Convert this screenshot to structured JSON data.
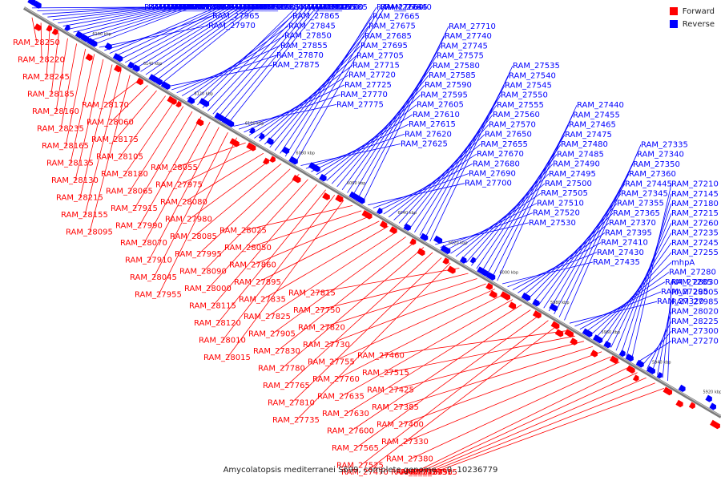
{
  "legend": {
    "forward": {
      "label": "Forward",
      "color": "#ff0000"
    },
    "reverse": {
      "label": "Reverse",
      "color": "#0000ff"
    }
  },
  "caption": "Amycolatopsis mediterranei S699, complete genome. - 0..10236779",
  "ticks": [
    "6160 kbp",
    "6140 kbp",
    "6120 kbp",
    "6100 kbp",
    "6080 kbp",
    "6060 kbp",
    "6040 kbp",
    "6020 kbp",
    "6000 kbp",
    "5980 kbp",
    "5960 kbp",
    "5940 kbp",
    "5920 kbp"
  ],
  "reverse_labels": [
    "RAM_28210",
    "RAM_28145",
    "RAM_28190",
    "RAM_28140",
    "RAM_28230",
    "RAM_28125",
    "RAM_28110",
    "RAM_28150",
    "RAM_28100",
    "RAM_28075",
    "RAM_28040",
    "RAM_28035",
    "RAM_28285",
    "RAM_27970",
    "RAM_27965",
    "RAM_27960",
    "RAM_27950",
    "RAM_27945",
    "RAM_27940",
    "RAM_27935",
    "RAM_27930",
    "RAM_27925",
    "RAM_27920",
    "RAM_27890",
    "RAM_27885",
    "RAM_27880",
    "RAM_27875",
    "RAM_27870",
    "RAM_27855",
    "RAM_27850",
    "RAM_27845",
    "RAM_27865",
    "RAM_27840",
    "RAM_27900",
    "RAM_27805",
    "RAM_27795",
    "RAM_27800",
    "RAM_27790",
    "RAM_27785",
    "RAM_27775",
    "RAM_27770",
    "RAM_27725",
    "RAM_27720",
    "RAM_27715",
    "RAM_27705",
    "RAM_27695",
    "RAM_27685",
    "RAM_27675",
    "RAM_27665",
    "RAM_27660",
    "RAM_27645",
    "RAM_27640",
    "RAM_27625",
    "RAM_27620",
    "RAM_27615",
    "RAM_27610",
    "RAM_27605",
    "RAM_27595",
    "RAM_27590",
    "RAM_27585",
    "RAM_27580",
    "RAM_27575",
    "RAM_27745",
    "RAM_27740",
    "RAM_27710",
    "RAM_27700",
    "RAM_27690",
    "RAM_27680",
    "RAM_27670",
    "RAM_27655",
    "RAM_27650",
    "RAM_27570",
    "RAM_27560",
    "RAM_27555",
    "RAM_27550",
    "RAM_27545",
    "RAM_27540",
    "RAM_27535",
    "RAM_27530",
    "RAM_27520",
    "RAM_27510",
    "RAM_27505",
    "RAM_27500",
    "RAM_27495",
    "RAM_27490",
    "RAM_27485",
    "RAM_27480",
    "RAM_27475",
    "RAM_27465",
    "RAM_27455",
    "RAM_27440",
    "RAM_27435",
    "RAM_27430",
    "RAM_27410",
    "RAM_27395",
    "RAM_27370",
    "RAM_27365",
    "RAM_27355",
    "RAM_27345",
    "RAM_27445",
    "RAM_27360",
    "RAM_27350",
    "RAM_27340",
    "RAM_27335",
    "RAM_27320",
    "RAM_27295",
    "RAM_27285",
    "RAM_27280",
    "mhpA",
    "RAM_27255",
    "RAM_27245",
    "RAM_27235",
    "RAM_27260",
    "RAM_27215",
    "RAM_27180",
    "RAM_27145",
    "RAM_27210",
    "RAM_27270",
    "RAM_27300",
    "RAM_28225",
    "RAM_28020",
    "RAM_27985",
    "RAM_28005",
    "RAM_28030"
  ],
  "forward_labels": [
    "RAM_28250",
    "RAM_28220",
    "RAM_28245",
    "RAM_28185",
    "RAM_28160",
    "RAM_28235",
    "RAM_28165",
    "RAM_28135",
    "RAM_28130",
    "RAM_28215",
    "RAM_28155",
    "RAM_28095",
    "RAM_28170",
    "RAM_28060",
    "RAM_28175",
    "RAM_28105",
    "RAM_28180",
    "RAM_28065",
    "RAM_27915",
    "RAM_27990",
    "RAM_28070",
    "RAM_27910",
    "RAM_28045",
    "RAM_27955",
    "RAM_28055",
    "RAM_27975",
    "RAM_28080",
    "RAM_27980",
    "RAM_28085",
    "RAM_27995",
    "RAM_28090",
    "RAM_28000",
    "RAM_28115",
    "RAM_28120",
    "RAM_28010",
    "RAM_28015",
    "RAM_28025",
    "RAM_28050",
    "RAM_27860",
    "RAM_27895",
    "RAM_27835",
    "RAM_27825",
    "RAM_27905",
    "RAM_27830",
    "RAM_27780",
    "RAM_27765",
    "RAM_27810",
    "RAM_27735",
    "RAM_27815",
    "RAM_27750",
    "RAM_27820",
    "RAM_27730",
    "RAM_27755",
    "RAM_27760",
    "RAM_27635",
    "RAM_27630",
    "RAM_27600",
    "RAM_27565",
    "RAM_27525",
    "RAM_27470",
    "RAM_27460",
    "RAM_27515",
    "RAM_27425",
    "RAM_27385",
    "RAM_27400",
    "RAM_27330",
    "RAM_27380",
    "RAM_27310",
    "RAM_27450",
    "RAM_27375",
    "RAM_27390",
    "RAM_27315"
  ]
}
